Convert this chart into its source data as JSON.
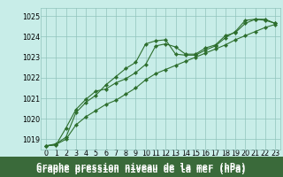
{
  "title": "Graphe pression niveau de la mer (hPa)",
  "bg_color": "#c8ede8",
  "grid_color": "#90c4bc",
  "line_color": "#2d6e2d",
  "xlim": [
    -0.5,
    23.5
  ],
  "ylim": [
    1018.5,
    1025.4
  ],
  "yticks": [
    1019,
    1020,
    1021,
    1022,
    1023,
    1024,
    1025
  ],
  "xticks": [
    0,
    1,
    2,
    3,
    4,
    5,
    6,
    7,
    8,
    9,
    10,
    11,
    12,
    13,
    14,
    15,
    16,
    17,
    18,
    19,
    20,
    21,
    22,
    23
  ],
  "series1": [
    1018.68,
    1018.78,
    1019.1,
    1020.3,
    1020.8,
    1021.15,
    1021.65,
    1022.05,
    1022.45,
    1022.75,
    1023.65,
    1023.8,
    1023.85,
    1023.15,
    1023.1,
    1023.1,
    1023.35,
    1023.55,
    1023.95,
    1024.25,
    1024.8,
    1024.85,
    1024.8,
    1024.65
  ],
  "series2": [
    1018.68,
    1018.75,
    1019.0,
    1019.7,
    1020.1,
    1020.4,
    1020.7,
    1020.9,
    1021.2,
    1021.5,
    1021.9,
    1022.2,
    1022.4,
    1022.6,
    1022.8,
    1023.0,
    1023.2,
    1023.4,
    1023.6,
    1023.85,
    1024.05,
    1024.25,
    1024.45,
    1024.6
  ],
  "series3": [
    1018.68,
    1018.72,
    1019.55,
    1020.45,
    1020.95,
    1021.35,
    1021.45,
    1021.75,
    1021.95,
    1022.25,
    1022.65,
    1023.55,
    1023.65,
    1023.5,
    1023.15,
    1023.15,
    1023.45,
    1023.6,
    1024.05,
    1024.2,
    1024.65,
    1024.85,
    1024.85,
    1024.65
  ],
  "title_fontsize": 7.5,
  "tick_fontsize": 5.8,
  "title_bg": "#3a6e3a",
  "title_fg": "#ffffff"
}
